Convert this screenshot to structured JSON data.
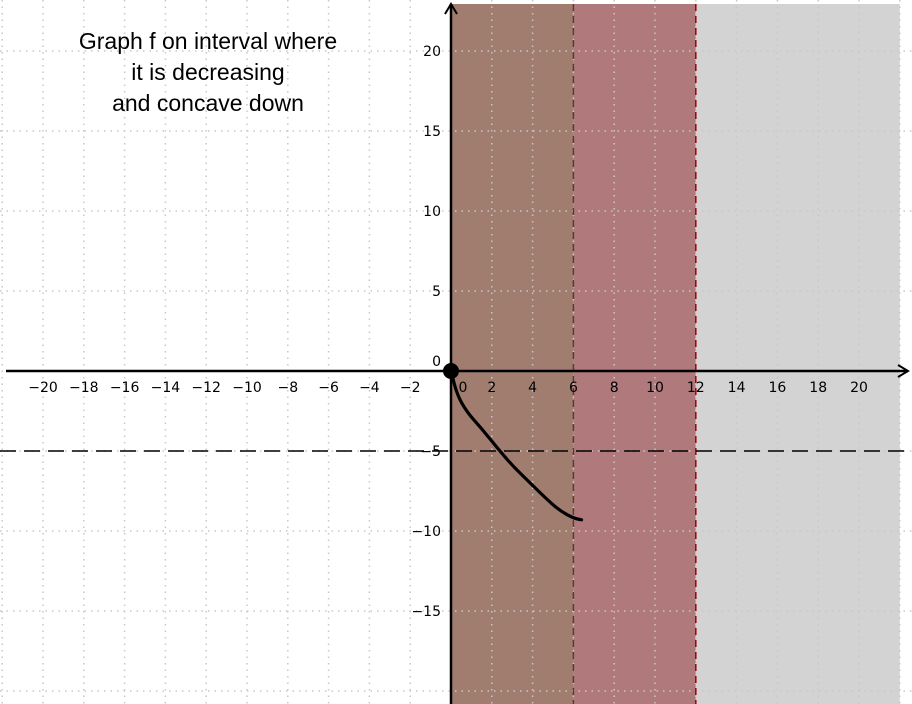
{
  "instruction": {
    "lines": [
      "Graph f on interval where",
      "it is decreasing",
      "and concave down"
    ]
  },
  "colors": {
    "grid": "#c8c8c8",
    "axis": "#000000",
    "shade_brown": "#a07d6e",
    "shade_red": "#b07a7d",
    "shade_gray": "#d3d3d3",
    "boundary_red": "#a00000",
    "boundary_brown": "#5a3a32",
    "asymptote": "#000000",
    "curve": "#000000"
  },
  "chart_data": {
    "type": "line",
    "xlim": [
      -22,
      22
    ],
    "ylim": [
      -20,
      23
    ],
    "grid": true,
    "x_ticks": [
      "-20",
      "-18",
      "-16",
      "-14",
      "-12",
      "-10",
      "-8",
      "-6",
      "-4",
      "-2",
      "0",
      "2",
      "4",
      "6",
      "8",
      "10",
      "12",
      "14",
      "16",
      "18",
      "20"
    ],
    "y_ticks": [
      {
        "value": 20,
        "label": "20"
      },
      {
        "value": 15,
        "label": "15"
      },
      {
        "value": 10,
        "label": "10"
      },
      {
        "value": 5,
        "label": "5"
      },
      {
        "value": 0,
        "label": "0"
      },
      {
        "value": -5,
        "label": "−5"
      },
      {
        "value": -10,
        "label": "−10"
      },
      {
        "value": -15,
        "label": "−15"
      }
    ],
    "shaded_regions": [
      {
        "x_from": 0,
        "x_to": 6,
        "color": "shade_brown"
      },
      {
        "x_from": 6,
        "x_to": 12,
        "color": "shade_red"
      },
      {
        "x_from": 12,
        "x_to": 22,
        "color": "shade_gray"
      }
    ],
    "vertical_boundaries": [
      {
        "x": 0,
        "style": "dashed",
        "color": "boundary_red"
      },
      {
        "x": 6,
        "style": "dashed",
        "color": "boundary_brown"
      },
      {
        "x": 12,
        "style": "dashed",
        "color": "boundary_red"
      }
    ],
    "horizontal_asymptote": {
      "y": -5,
      "style": "dashed"
    },
    "point": {
      "x": 0,
      "y": 0,
      "filled": true
    },
    "curve": [
      {
        "x": 0.0,
        "y": 0.0
      },
      {
        "x": 0.3,
        "y": -1.5
      },
      {
        "x": 0.8,
        "y": -2.6
      },
      {
        "x": 1.5,
        "y": -3.6
      },
      {
        "x": 2.2,
        "y": -4.7
      },
      {
        "x": 3.0,
        "y": -5.9
      },
      {
        "x": 3.8,
        "y": -6.9
      },
      {
        "x": 4.6,
        "y": -7.9
      },
      {
        "x": 5.3,
        "y": -8.7
      },
      {
        "x": 6.0,
        "y": -9.2
      },
      {
        "x": 6.4,
        "y": -9.3
      }
    ]
  }
}
